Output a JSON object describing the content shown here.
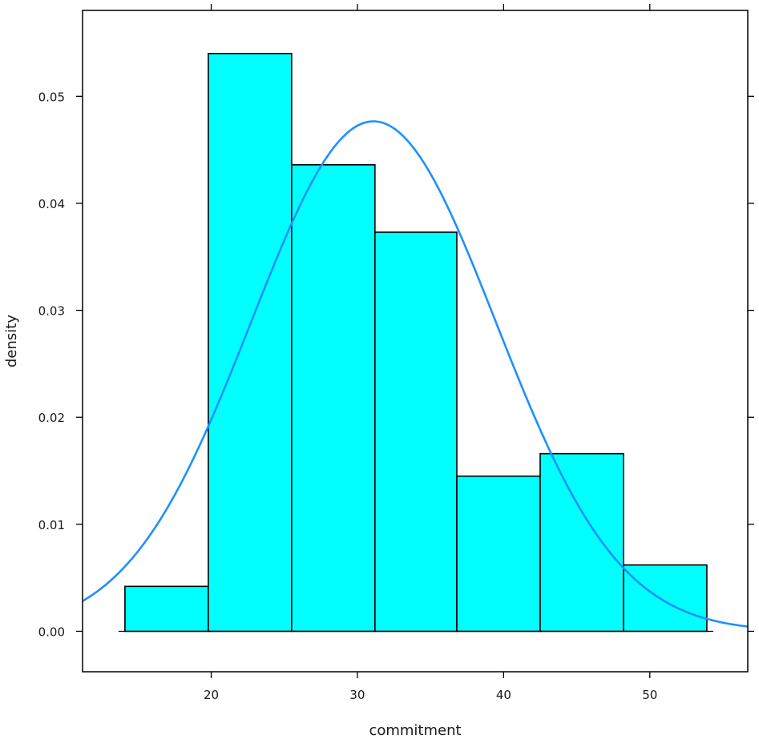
{
  "chart_data": {
    "type": "bar",
    "title": "",
    "xlabel": "commitment",
    "ylabel": "density",
    "xlim": [
      11.2,
      56.7
    ],
    "ylim": [
      -0.00378,
      0.05803
    ],
    "xticks": [
      20,
      30,
      40,
      50
    ],
    "xtick_labels": [
      "20",
      "30",
      "40",
      "50"
    ],
    "yticks": [
      0.0,
      0.01,
      0.02,
      0.03,
      0.04,
      0.05
    ],
    "ytick_labels": [
      "0.00",
      "0.01",
      "0.02",
      "0.03",
      "0.04",
      "0.05"
    ],
    "bins": [
      {
        "left": 14.1,
        "right": 19.8,
        "density": 0.0042
      },
      {
        "left": 19.8,
        "right": 25.5,
        "density": 0.054
      },
      {
        "left": 25.5,
        "right": 31.2,
        "density": 0.0436
      },
      {
        "left": 31.2,
        "right": 36.8,
        "density": 0.0373
      },
      {
        "left": 36.8,
        "right": 42.5,
        "density": 0.0145
      },
      {
        "left": 42.5,
        "right": 48.2,
        "density": 0.0166
      },
      {
        "left": 48.2,
        "right": 53.9,
        "density": 0.0062
      }
    ],
    "density_curve": {
      "kind": "normal",
      "mean": 31.1,
      "sd": 8.37
    },
    "grid": false,
    "colors": {
      "bar_fill": "#00ffff",
      "bar_stroke": "#000000",
      "curve": "#1e90ff",
      "frame": "#000000"
    }
  }
}
